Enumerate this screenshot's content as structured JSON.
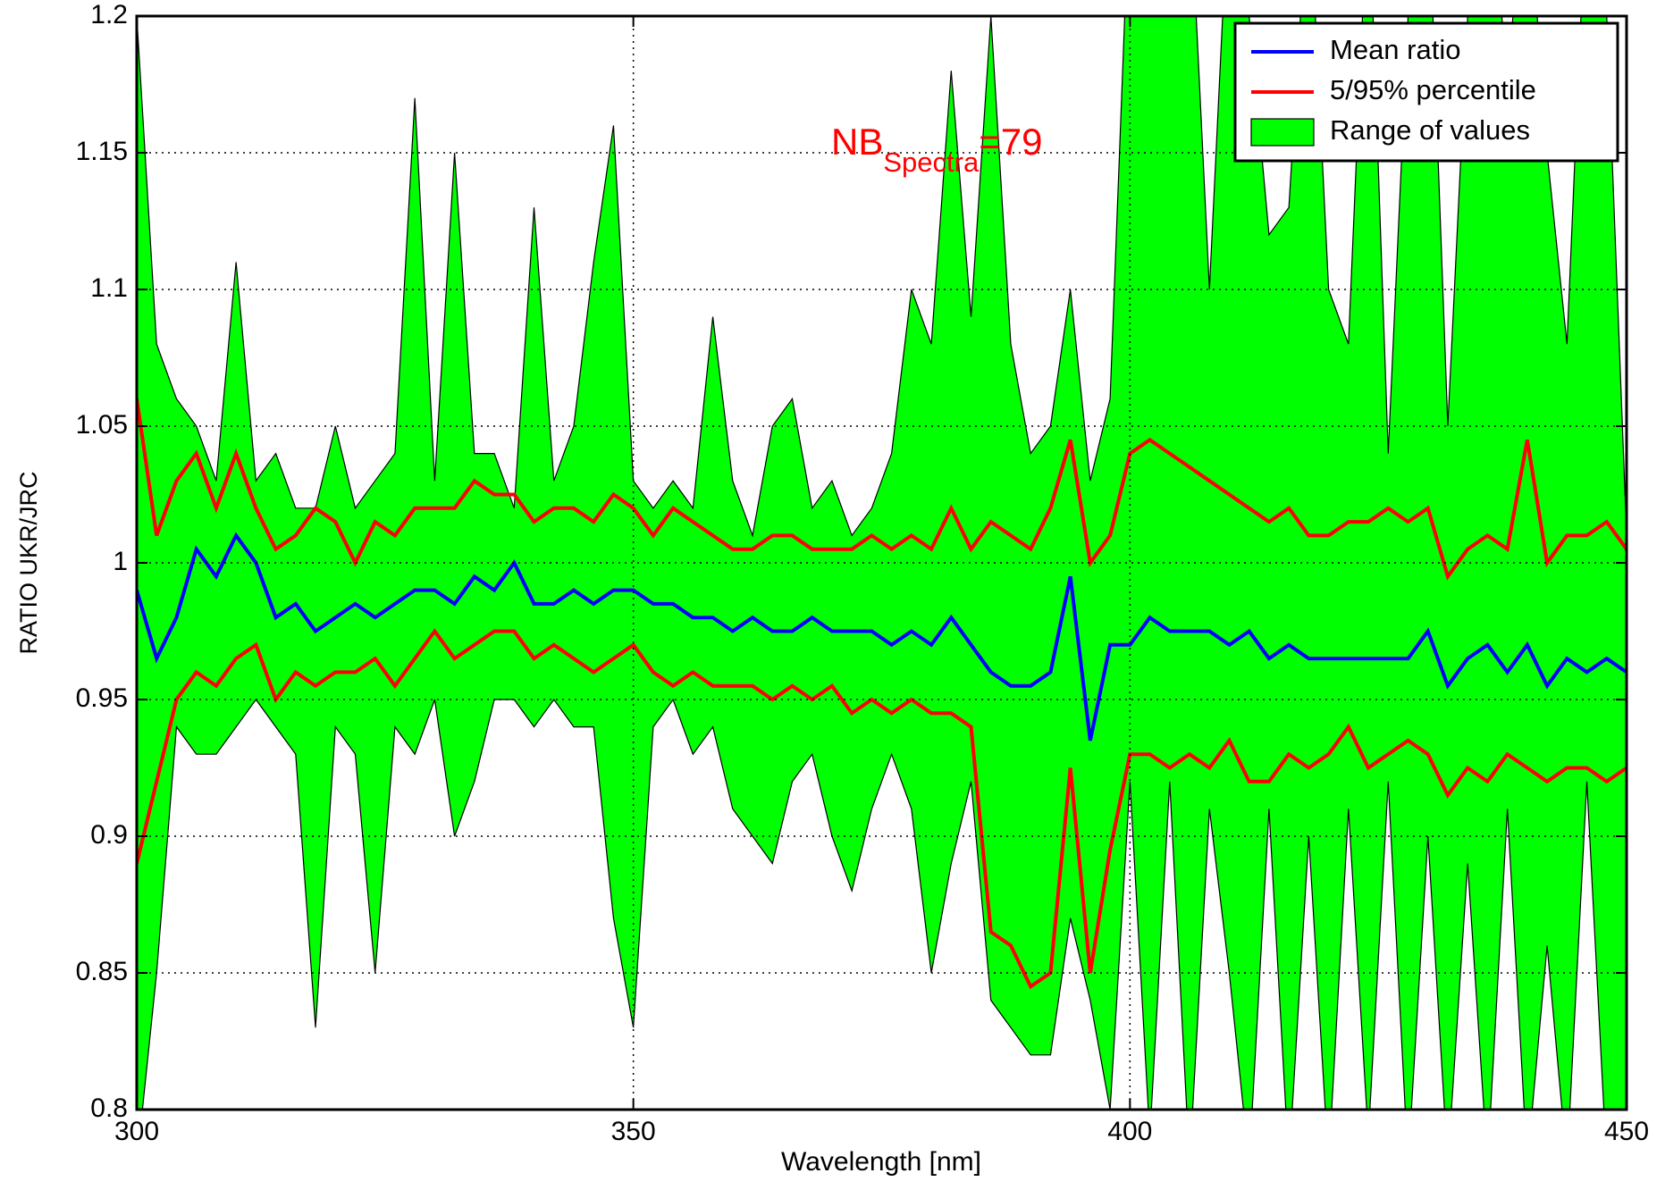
{
  "chart_data": {
    "type": "line",
    "x_label": "Wavelength [nm]",
    "y_label": "RATIO UKR/JRC",
    "annotation": {
      "text": "NB",
      "subscript": "Spectra",
      "suffix": "=79",
      "color": "#ff0000"
    },
    "x": [
      300,
      302,
      304,
      306,
      308,
      310,
      312,
      314,
      316,
      318,
      320,
      322,
      324,
      326,
      328,
      330,
      332,
      334,
      336,
      338,
      340,
      342,
      344,
      346,
      348,
      350,
      352,
      354,
      356,
      358,
      360,
      362,
      364,
      366,
      368,
      370,
      372,
      374,
      376,
      378,
      380,
      382,
      384,
      386,
      388,
      390,
      392,
      394,
      396,
      398,
      400,
      402,
      404,
      406,
      408,
      410,
      412,
      414,
      416,
      418,
      420,
      422,
      424,
      426,
      428,
      430,
      432,
      434,
      436,
      438,
      440,
      442,
      444,
      446,
      448,
      450
    ],
    "series": [
      {
        "name": "Mean ratio",
        "color": "#0000ff",
        "kind": "line",
        "values": [
          0.99,
          0.965,
          0.98,
          1.005,
          0.995,
          1.01,
          1.0,
          0.98,
          0.985,
          0.975,
          0.98,
          0.985,
          0.98,
          0.985,
          0.99,
          0.99,
          0.985,
          0.995,
          0.99,
          1.0,
          0.985,
          0.985,
          0.99,
          0.985,
          0.99,
          0.99,
          0.985,
          0.985,
          0.98,
          0.98,
          0.975,
          0.98,
          0.975,
          0.975,
          0.98,
          0.975,
          0.975,
          0.975,
          0.97,
          0.975,
          0.97,
          0.98,
          0.97,
          0.96,
          0.955,
          0.955,
          0.96,
          0.995,
          0.935,
          0.97,
          0.97,
          0.98,
          0.975,
          0.975,
          0.975,
          0.97,
          0.975,
          0.965,
          0.97,
          0.965,
          0.965,
          0.965,
          0.965,
          0.965,
          0.965,
          0.975,
          0.955,
          0.965,
          0.97,
          0.96,
          0.97,
          0.955,
          0.965,
          0.96,
          0.965,
          0.96
        ]
      },
      {
        "name": "5/95% percentile",
        "color": "#ff0000",
        "kind": "band-lines",
        "values": [
          1.06,
          1.01,
          1.03,
          1.04,
          1.02,
          1.04,
          1.02,
          1.005,
          1.01,
          1.02,
          1.015,
          1.0,
          1.015,
          1.01,
          1.02,
          1.02,
          1.02,
          1.03,
          1.025,
          1.025,
          1.015,
          1.02,
          1.02,
          1.015,
          1.025,
          1.02,
          1.01,
          1.02,
          1.015,
          1.01,
          1.005,
          1.005,
          1.01,
          1.01,
          1.005,
          1.005,
          1.005,
          1.01,
          1.005,
          1.01,
          1.005,
          1.02,
          1.005,
          1.015,
          1.01,
          1.005,
          1.02,
          1.045,
          1.0,
          1.01,
          1.04,
          1.045,
          1.04,
          1.035,
          1.03,
          1.025,
          1.02,
          1.015,
          1.02,
          1.01,
          1.01,
          1.015,
          1.015,
          1.02,
          1.015,
          1.02,
          0.995,
          1.005,
          1.01,
          1.005,
          1.045,
          1.0,
          1.01,
          1.01,
          1.015,
          1.005
        ],
        "low": [
          0.89,
          0.92,
          0.95,
          0.96,
          0.955,
          0.965,
          0.97,
          0.95,
          0.96,
          0.955,
          0.96,
          0.96,
          0.965,
          0.955,
          0.965,
          0.975,
          0.965,
          0.97,
          0.975,
          0.975,
          0.965,
          0.97,
          0.965,
          0.96,
          0.965,
          0.97,
          0.96,
          0.955,
          0.96,
          0.955,
          0.955,
          0.955,
          0.95,
          0.955,
          0.95,
          0.955,
          0.945,
          0.95,
          0.945,
          0.95,
          0.945,
          0.945,
          0.94,
          0.865,
          0.86,
          0.845,
          0.85,
          0.925,
          0.85,
          0.895,
          0.93,
          0.93,
          0.925,
          0.93,
          0.925,
          0.935,
          0.92,
          0.92,
          0.93,
          0.925,
          0.93,
          0.94,
          0.925,
          0.93,
          0.935,
          0.93,
          0.915,
          0.925,
          0.92,
          0.93,
          0.925,
          0.92,
          0.925,
          0.925,
          0.92,
          0.925
        ]
      },
      {
        "name": "Range of values",
        "color": "#00ff00",
        "kind": "area",
        "values": [
          1.2,
          1.08,
          1.06,
          1.05,
          1.03,
          1.11,
          1.03,
          1.04,
          1.02,
          1.02,
          1.05,
          1.02,
          1.03,
          1.04,
          1.17,
          1.03,
          1.15,
          1.04,
          1.04,
          1.02,
          1.13,
          1.03,
          1.05,
          1.11,
          1.16,
          1.03,
          1.02,
          1.03,
          1.02,
          1.09,
          1.03,
          1.01,
          1.05,
          1.06,
          1.02,
          1.03,
          1.01,
          1.02,
          1.04,
          1.1,
          1.08,
          1.18,
          1.09,
          1.2,
          1.08,
          1.04,
          1.05,
          1.1,
          1.03,
          1.06,
          1.25,
          1.2,
          1.25,
          1.25,
          1.1,
          1.25,
          1.2,
          1.12,
          1.13,
          1.25,
          1.1,
          1.08,
          1.25,
          1.04,
          1.2,
          1.25,
          1.05,
          1.2,
          1.25,
          1.18,
          1.25,
          1.15,
          1.08,
          1.25,
          1.2,
          1.01
        ],
        "low": [
          0.78,
          0.85,
          0.94,
          0.93,
          0.93,
          0.94,
          0.95,
          0.94,
          0.93,
          0.83,
          0.94,
          0.93,
          0.85,
          0.94,
          0.93,
          0.95,
          0.9,
          0.92,
          0.95,
          0.95,
          0.94,
          0.95,
          0.94,
          0.94,
          0.87,
          0.83,
          0.94,
          0.95,
          0.93,
          0.94,
          0.91,
          0.9,
          0.89,
          0.92,
          0.93,
          0.9,
          0.88,
          0.91,
          0.93,
          0.91,
          0.85,
          0.89,
          0.92,
          0.84,
          0.83,
          0.82,
          0.82,
          0.87,
          0.84,
          0.8,
          0.92,
          0.79,
          0.92,
          0.78,
          0.91,
          0.85,
          0.78,
          0.91,
          0.78,
          0.9,
          0.78,
          0.91,
          0.79,
          0.92,
          0.78,
          0.9,
          0.78,
          0.89,
          0.78,
          0.91,
          0.78,
          0.86,
          0.78,
          0.92,
          0.78,
          0.78
        ]
      }
    ],
    "xlim": [
      300,
      450
    ],
    "xticks": [
      300,
      350,
      400,
      450
    ],
    "ylim": [
      0.8,
      1.2
    ],
    "yticks": [
      0.8,
      0.85,
      0.9,
      0.95,
      1,
      1.05,
      1.1,
      1.15,
      1.2
    ],
    "grid": true,
    "legend": "top-right"
  }
}
